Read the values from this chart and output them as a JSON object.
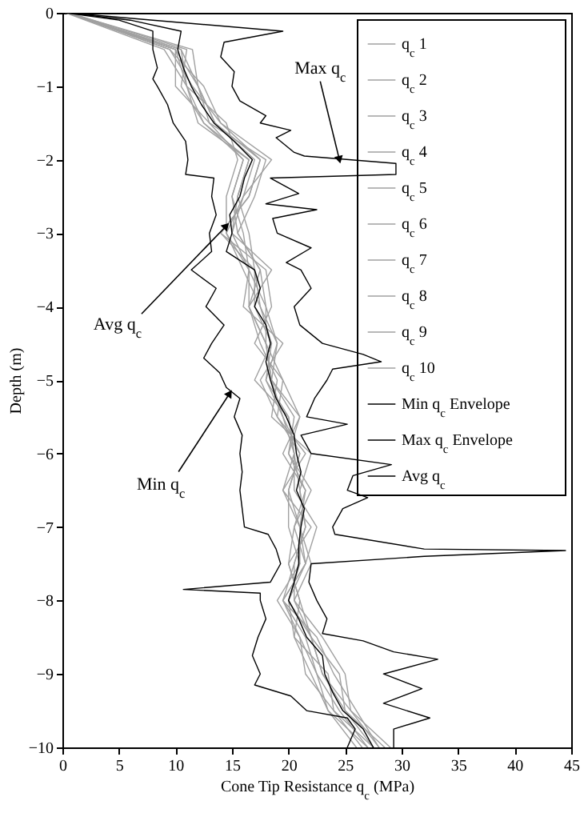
{
  "chart_data": {
    "type": "line",
    "xlabel": "Cone Tip Resistance q$_{c}$ (MPa)",
    "ylabel": "Depth (m)",
    "xlim": [
      0,
      45
    ],
    "xticks": [
      0,
      5,
      10,
      15,
      20,
      25,
      30,
      35,
      40,
      45
    ],
    "ylim": [
      -10,
      0
    ],
    "yticks": [
      -10,
      -9,
      -8,
      -7,
      -6,
      -5,
      -4,
      -3,
      -2,
      -1,
      0
    ],
    "legend": "top right",
    "line_style": "solid",
    "annotations": [
      {
        "text": "Max q$_{c}$",
        "x": 24.5,
        "y": -2.0
      },
      {
        "text": "Avg q$_{c}$",
        "x": 14.5,
        "y": -2.9
      },
      {
        "text": "Min q$_{c}$",
        "x": 14.8,
        "y": -5.18
      }
    ],
    "series": [
      {
        "name": "q$_{c}$ 1",
        "color": "#a0a0a0",
        "x": [
          0.4,
          9.5,
          12.5,
          14,
          17.5,
          16.5,
          14,
          18,
          18.5,
          17,
          19.5,
          21,
          20,
          22,
          20.5,
          21.5,
          19.5,
          22.5,
          24,
          26,
          28
        ],
        "values": [
          0,
          -0.5,
          -1,
          -1.5,
          -2,
          -2.5,
          -3,
          -3.5,
          -4,
          -4.5,
          -5,
          -5.5,
          -6,
          -6.5,
          -7,
          -7.5,
          -8,
          -8.5,
          -9,
          -9.5,
          -10
        ]
      },
      {
        "name": "q$_{c}$ 2",
        "color": "#a0a0a0",
        "x": [
          0.6,
          11,
          10.5,
          12.5,
          16,
          15,
          16,
          16.5,
          16,
          19.5,
          17.5,
          19,
          21.5,
          19.5,
          22,
          20,
          21,
          20.5,
          22,
          23.5,
          27
        ],
        "values": [
          0,
          -0.5,
          -1,
          -1.5,
          -2,
          -2.5,
          -3,
          -3.5,
          -4,
          -4.5,
          -5,
          -5.5,
          -6,
          -6.5,
          -7,
          -7.5,
          -8,
          -8.5,
          -9,
          -9.5,
          -10
        ]
      },
      {
        "name": "q$_{c}$ 3",
        "color": "#a0a0a0",
        "x": [
          0.5,
          10,
          12,
          13,
          18,
          17,
          15.5,
          17.5,
          18,
          18,
          18.5,
          20.5,
          20,
          21.5,
          21,
          22,
          20.5,
          23,
          25,
          25.5,
          29
        ],
        "values": [
          0,
          -0.5,
          -1,
          -1.5,
          -2,
          -2.5,
          -3,
          -3.5,
          -4,
          -4.5,
          -5,
          -5.5,
          -6,
          -6.5,
          -7,
          -7.5,
          -8,
          -8.5,
          -9,
          -9.5,
          -10
        ]
      },
      {
        "name": "q$_{c}$ 4",
        "color": "#a0a0a0",
        "x": [
          0.3,
          9,
          11,
          14.5,
          15.5,
          14.5,
          14.5,
          16,
          17.5,
          19,
          18,
          19.5,
          21,
          20,
          20,
          21,
          19,
          21,
          21.5,
          24,
          26.5
        ],
        "values": [
          0,
          -0.5,
          -1,
          -1.5,
          -2,
          -2.5,
          -3,
          -3.5,
          -4,
          -4.5,
          -5,
          -5.5,
          -6,
          -6.5,
          -7,
          -7.5,
          -8,
          -8.5,
          -9,
          -9.5,
          -10
        ]
      },
      {
        "name": "q$_{c}$ 5",
        "color": "#a0a0a0",
        "x": [
          0.5,
          11.5,
          12,
          13.5,
          17,
          16,
          15,
          18.5,
          16.5,
          17.5,
          19,
          18.5,
          22,
          21,
          21.5,
          20.5,
          20.5,
          22,
          24.5,
          25,
          28.5
        ],
        "values": [
          0,
          -0.5,
          -1,
          -1.5,
          -2,
          -2.5,
          -3,
          -3.5,
          -4,
          -4.5,
          -5,
          -5.5,
          -6,
          -6.5,
          -7,
          -7.5,
          -8,
          -8.5,
          -9,
          -9.5,
          -10
        ]
      },
      {
        "name": "q$_{c}$ 6",
        "color": "#a0a0a0",
        "x": [
          0.4,
          10.5,
          11,
          12,
          16.5,
          15.5,
          16.5,
          17,
          17,
          18.5,
          17,
          20,
          20.5,
          20.5,
          22.5,
          21.5,
          19.5,
          21.5,
          22.5,
          24.5,
          27
        ],
        "values": [
          0,
          -0.5,
          -1,
          -1.5,
          -2,
          -2.5,
          -3,
          -3.5,
          -4,
          -4.5,
          -5,
          -5.5,
          -6,
          -6.5,
          -7,
          -7.5,
          -8,
          -8.5,
          -9,
          -9.5,
          -10
        ]
      },
      {
        "name": "q$_{c}$ 7",
        "color": "#a0a0a0",
        "x": [
          0.6,
          9.5,
          11.5,
          14,
          18.5,
          16,
          14.5,
          16.5,
          18,
          19,
          18.5,
          21,
          19.5,
          21.5,
          20.5,
          20,
          21,
          22,
          23,
          25.5,
          28
        ],
        "values": [
          0,
          -0.5,
          -1,
          -1.5,
          -2,
          -2.5,
          -3,
          -3.5,
          -4,
          -4.5,
          -5,
          -5.5,
          -6,
          -6.5,
          -7,
          -7.5,
          -8,
          -8.5,
          -9,
          -9.5,
          -10
        ]
      },
      {
        "name": "q$_{c}$ 8",
        "color": "#a0a0a0",
        "x": [
          0.5,
          10,
          10,
          13,
          16,
          15,
          15.5,
          17.5,
          16.5,
          18,
          19.5,
          19,
          21,
          20,
          21,
          21,
          20,
          20.5,
          23.5,
          24,
          27.5
        ],
        "values": [
          0,
          -0.5,
          -1,
          -1.5,
          -2,
          -2.5,
          -3,
          -3.5,
          -4,
          -4.5,
          -5,
          -5.5,
          -6,
          -6.5,
          -7,
          -7.5,
          -8,
          -8.5,
          -9,
          -9.5,
          -10
        ]
      },
      {
        "name": "q$_{c}$ 9",
        "color": "#a0a0a0",
        "x": [
          0.4,
          10.5,
          12,
          13.5,
          17.5,
          16.5,
          14,
          17,
          17.5,
          18.5,
          18,
          20,
          20.5,
          21,
          21.5,
          20.5,
          19.5,
          21,
          22.5,
          23.5,
          26
        ],
        "values": [
          0,
          -0.5,
          -1,
          -1.5,
          -2,
          -2.5,
          -3,
          -3.5,
          -4,
          -4.5,
          -5,
          -5.5,
          -6,
          -6.5,
          -7,
          -7.5,
          -8,
          -8.5,
          -9,
          -9.5,
          -10
        ]
      },
      {
        "name": "q$_{c}$ 10",
        "color": "#a0a0a0",
        "x": [
          0.5,
          10,
          11,
          12.5,
          16.5,
          15.5,
          15,
          16.5,
          16.5,
          18,
          18.5,
          19.5,
          20.5,
          19.5,
          21,
          21.5,
          20,
          22,
          23,
          25,
          27.5
        ],
        "values": [
          0,
          -0.5,
          -1,
          -1.5,
          -2,
          -2.5,
          -3,
          -3.5,
          -4,
          -4.5,
          -5,
          -5.5,
          -6,
          -6.5,
          -7,
          -7.5,
          -8,
          -8.5,
          -9,
          -9.5,
          -10
        ]
      },
      {
        "name": "Min q$_{c}$ Envelope",
        "color": "#000000",
        "x": [
          0.3,
          5,
          8,
          8,
          8.4,
          8,
          8.4,
          9.3,
          9.8,
          10.9,
          11.1,
          10.9,
          13.4,
          13.2,
          13.6,
          13,
          13.2,
          11.4,
          13.6,
          12.7,
          14.3,
          13.2,
          12.5,
          13.9,
          14.5,
          15.7,
          15.2,
          15.9,
          15.7,
          15.9,
          15.7,
          15.9,
          16.1,
          18.2,
          18.9,
          19.3,
          18.4,
          10.7,
          17.5,
          17.5,
          18,
          17.3,
          16.8,
          17.5,
          17,
          20.2,
          21.6,
          25.2,
          25.9,
          25.2
        ],
        "values": [
          0,
          -0.1,
          -0.25,
          -0.5,
          -0.75,
          -0.9,
          -1,
          -1.25,
          -1.5,
          -1.75,
          -2,
          -2.2,
          -2.25,
          -2.5,
          -2.75,
          -3,
          -3.25,
          -3.5,
          -3.75,
          -4,
          -4.25,
          -4.5,
          -4.7,
          -4.9,
          -5.1,
          -5.25,
          -5.5,
          -5.75,
          -6,
          -6.25,
          -6.5,
          -6.75,
          -7,
          -7.1,
          -7.3,
          -7.5,
          -7.75,
          -7.85,
          -7.9,
          -8,
          -8.25,
          -8.5,
          -8.75,
          -9,
          -9.15,
          -9.3,
          -9.5,
          -9.6,
          -9.75,
          -10
        ]
      },
      {
        "name": "Max q$_{c}$ Envelope",
        "color": "#000000",
        "x": [
          0.5,
          8,
          19.5,
          14.3,
          14,
          15.2,
          15,
          15.7,
          18,
          17.5,
          20.2,
          18.9,
          20.5,
          21.4,
          29.5,
          29.5,
          18.4,
          20.9,
          18,
          22.5,
          18.6,
          19,
          22,
          19.8,
          21.1,
          22,
          20.5,
          21,
          23,
          26.6,
          28.2,
          23.9,
          23.4,
          22.3,
          21.6,
          25.2,
          21.1,
          22,
          29.1,
          25.7,
          25.2,
          27,
          24.8,
          23.9,
          24.1,
          32,
          44.5,
          32,
          22,
          21.8,
          22.5,
          23.4,
          23,
          26.6,
          29.3,
          33.2,
          28.4,
          31.8,
          28.4,
          32.5,
          29.3,
          29.3
        ],
        "values": [
          0,
          -0.1,
          -0.25,
          -0.4,
          -0.6,
          -0.8,
          -1,
          -1.2,
          -1.4,
          -1.5,
          -1.6,
          -1.7,
          -1.9,
          -1.95,
          -2.05,
          -2.2,
          -2.25,
          -2.46,
          -2.6,
          -2.68,
          -2.8,
          -3,
          -3.2,
          -3.4,
          -3.5,
          -3.75,
          -4,
          -4.25,
          -4.5,
          -4.65,
          -4.75,
          -4.85,
          -5,
          -5.25,
          -5.5,
          -5.6,
          -5.75,
          -6,
          -6.15,
          -6.3,
          -6.5,
          -6.6,
          -6.75,
          -7,
          -7.1,
          -7.3,
          -7.32,
          -7.4,
          -7.5,
          -7.75,
          -8,
          -8.25,
          -8.45,
          -8.55,
          -8.7,
          -8.8,
          -9,
          -9.2,
          -9.4,
          -9.6,
          -9.75,
          -10
        ]
      },
      {
        "name": "Avg q$_{c}$",
        "color": "#000000",
        "x": [
          0.5,
          6,
          10.5,
          10.2,
          10.7,
          11.4,
          12.3,
          13.4,
          15.2,
          16.8,
          16.1,
          15.7,
          14.8,
          15,
          14.5,
          17,
          17.5,
          17,
          18,
          18.4,
          18,
          18.4,
          18.9,
          19.8,
          20.5,
          20.7,
          21.1,
          20.7,
          21.4,
          21.1,
          20.9,
          20.9,
          20.5,
          20,
          20.9,
          21.6,
          23,
          23.2,
          23.9,
          24.8,
          26.6,
          27.5
        ],
        "values": [
          0,
          -0.1,
          -0.25,
          -0.5,
          -0.75,
          -1,
          -1.25,
          -1.5,
          -1.75,
          -2,
          -2.25,
          -2.5,
          -2.75,
          -3,
          -3.25,
          -3.5,
          -3.75,
          -4,
          -4.25,
          -4.5,
          -4.75,
          -5,
          -5.25,
          -5.5,
          -5.75,
          -6,
          -6.25,
          -6.5,
          -6.75,
          -7,
          -7.25,
          -7.5,
          -7.75,
          -8,
          -8.25,
          -8.5,
          -8.75,
          -9,
          -9.25,
          -9.5,
          -9.75,
          -10
        ]
      }
    ]
  }
}
